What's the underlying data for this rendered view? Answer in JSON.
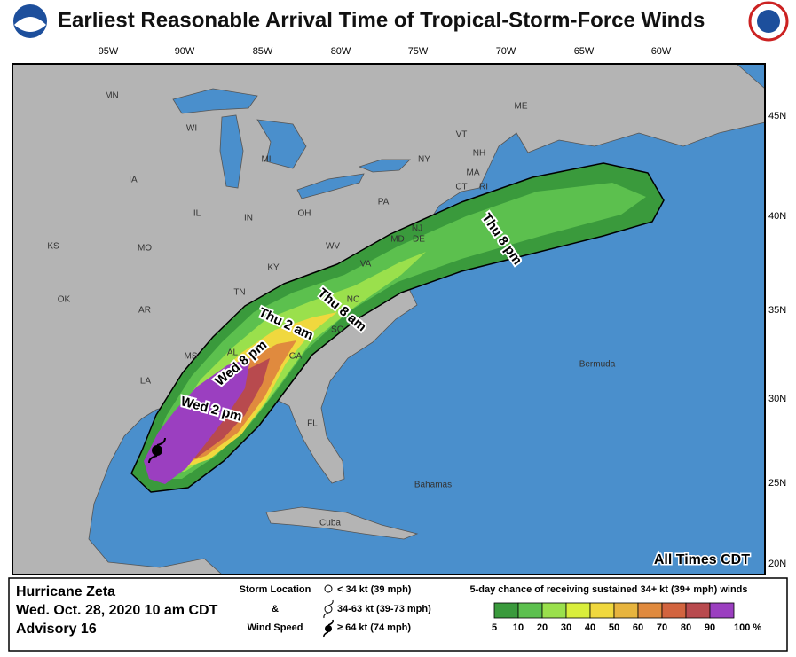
{
  "header": {
    "title": "Earliest Reasonable Arrival Time of Tropical-Storm-Force Winds"
  },
  "map": {
    "longitudes": [
      "95W",
      "90W",
      "85W",
      "80W",
      "75W",
      "70W",
      "65W",
      "60W"
    ],
    "latitudes": [
      "45N",
      "40N",
      "35N",
      "30N",
      "25N",
      "20N"
    ],
    "regions": [
      "MN",
      "WI",
      "MI",
      "IA",
      "IL",
      "IN",
      "OH",
      "PA",
      "NY",
      "VT",
      "NH",
      "ME",
      "MA",
      "CT",
      "RI",
      "NJ",
      "DE",
      "MD",
      "KS",
      "MO",
      "KY",
      "WV",
      "VA",
      "OK",
      "AR",
      "TN",
      "NC",
      "SC",
      "MS",
      "AL",
      "GA",
      "LA",
      "FL"
    ],
    "places": [
      "Bermuda",
      "Bahamas",
      "Cuba"
    ],
    "time_labels": [
      "Thu 8 pm",
      "Thu 8 am",
      "Thu 2 am",
      "Wed 8 pm",
      "Wed 2 pm"
    ],
    "note": "All Times CDT"
  },
  "footer": {
    "storm": "Hurricane Zeta",
    "date": "Wed. Oct. 28, 2020  10 am CDT",
    "advisory": "Advisory 16",
    "symbol_heading": [
      "Storm Location",
      "&",
      "Wind Speed"
    ],
    "symbols": [
      "< 34 kt (39 mph)",
      "34-63 kt (39-73 mph)",
      "≥ 64 kt (74 mph)"
    ],
    "legend_title": "5-day chance of receiving sustained 34+ kt (39+ mph) winds",
    "legend_labels": [
      "5",
      "10",
      "20",
      "30",
      "40",
      "50",
      "60",
      "70",
      "80",
      "90",
      "100 %"
    ],
    "legend_colors": [
      "#3a9a3c",
      "#5cc04e",
      "#9ae04c",
      "#d9ee3c",
      "#f0d83e",
      "#e7b43e",
      "#e08a3e",
      "#d2643f",
      "#b84a4e",
      "#9b3fc0"
    ]
  }
}
